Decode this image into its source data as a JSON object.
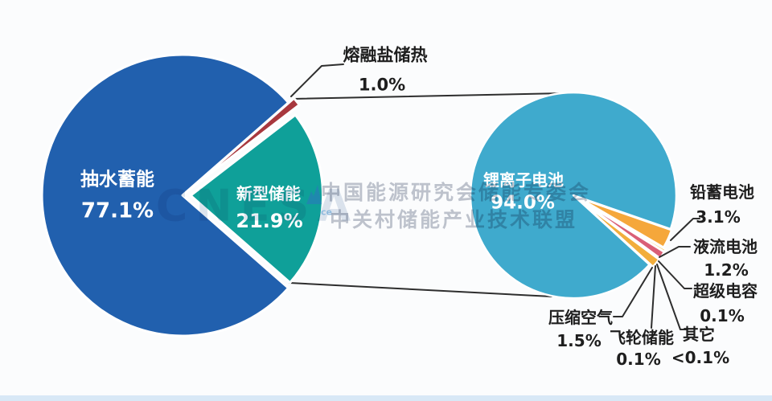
{
  "watermark": {
    "org_line1": "中国能源研究会储能专委会",
    "org_line2": "中关村储能产业技术联盟",
    "logo_text": "CNESA",
    "logo_sub": "ce"
  },
  "colors": {
    "background": "#fbfcfd",
    "connector_line": "#2e2e2e",
    "callout_text": "#1e1e1e",
    "footer_strip": "#d8e8f6"
  },
  "chart_data": [
    {
      "type": "pie",
      "id": "left-pie",
      "legend_position": "inside",
      "slices": [
        {
          "label": "抽水蓄能",
          "value": 77.1,
          "pct_label": "77.1%",
          "color": "#2160AE",
          "text_color": "#ffffff"
        },
        {
          "label": "新型储能",
          "value": 21.9,
          "pct_label": "21.9%",
          "color": "#0FA099",
          "text_color": "#ffffff"
        },
        {
          "label": "熔融盐储热",
          "value": 1.0,
          "pct_label": "1.0%",
          "color": "#A8383E",
          "text_color": "#1e1e1e"
        }
      ]
    },
    {
      "type": "pie",
      "id": "right-pie",
      "legend_position": "callouts",
      "slices": [
        {
          "label": "锂离子电池",
          "value": 94.0,
          "pct_label": "94.0%",
          "color": "#3FAACD",
          "text_color": "#ffffff"
        },
        {
          "label": "铅蓄电池",
          "value": 3.1,
          "pct_label": "3.1%",
          "color": "#F5A73B",
          "text_color": "#1e1e1e"
        },
        {
          "label": "超级电容",
          "value": 0.1,
          "pct_label": "0.1%",
          "color": "#F7C85C",
          "text_color": "#1e1e1e"
        },
        {
          "label": "液流电池",
          "value": 1.2,
          "pct_label": "1.2%",
          "color": "#D95F77",
          "text_color": "#1e1e1e"
        },
        {
          "label": "飞轮储能",
          "value": 0.1,
          "pct_label": "0.1%",
          "color": "#F4B83F",
          "text_color": "#1e1e1e"
        },
        {
          "label": "压缩空气",
          "value": 1.5,
          "pct_label": "1.5%",
          "color": "#F2AE3C",
          "text_color": "#1e1e1e"
        },
        {
          "label": "其它",
          "value": 0.05,
          "pct_label": "<0.1%",
          "color": "#F2B13C",
          "text_color": "#1e1e1e"
        }
      ]
    }
  ]
}
